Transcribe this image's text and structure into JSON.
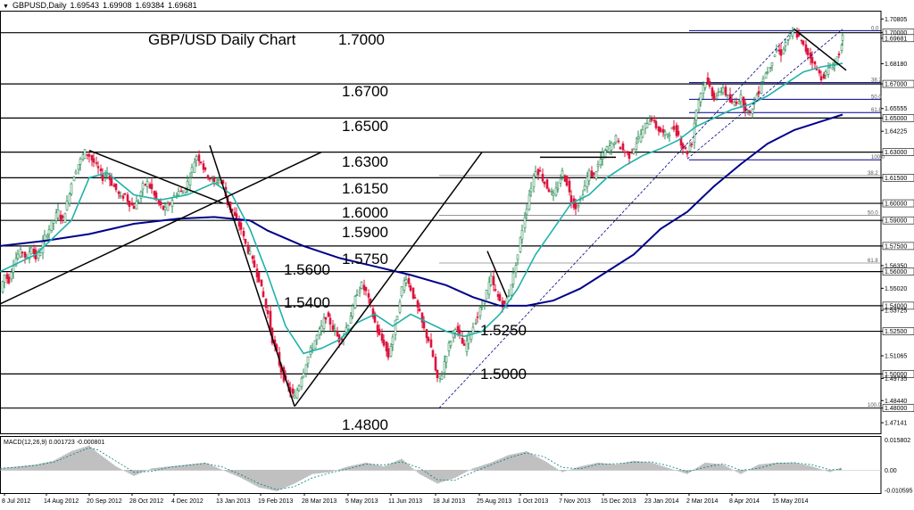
{
  "header": {
    "symbol": "GBPUSD,Daily",
    "values": [
      "1.69543",
      "1.69908",
      "1.69384",
      "1.69681"
    ]
  },
  "chart_title": "GBP/USD Daily Chart",
  "colors": {
    "candle_up": "#2e8b57",
    "candle_down": "#dc143c",
    "ma_fast": "#20b2aa",
    "ma_slow": "#00008b",
    "level_line": "#000000",
    "fib_line": "#00008b",
    "macd_hist": "#808080",
    "signal": "#008080"
  },
  "chart_data": {
    "type": "candlestick",
    "symbol": "GBPUSD,Daily",
    "ylim": [
      1.4652,
      1.7129
    ],
    "y_ticks": [
      "1.70805",
      "1.70000",
      "1.69681",
      "1.68180",
      "1.67000",
      "1.65555",
      "1.65000",
      "1.64225",
      "1.63000",
      "1.61500",
      "1.60000",
      "1.59000",
      "1.57500",
      "1.56350",
      "1.56000",
      "1.55020",
      "1.54000",
      "1.53725",
      "1.52500",
      "1.51065",
      "1.50000",
      "1.49735",
      "1.48440",
      "1.48000",
      "1.47141"
    ],
    "x_tick_labels": [
      "8 Jul 2012",
      "14 Aug 2012",
      "20 Sep 2012",
      "28 Oct 2012",
      "4 Dec 2012",
      "13 Jan 2013",
      "19 Feb 2013",
      "28 Mar 2013",
      "5 May 2013",
      "11 Jun 2013",
      "18 Jul 2013",
      "25 Aug 2013",
      "1 Oct 2013",
      "7 Nov 2013",
      "15 Dec 2013",
      "23 Jan 2014",
      "2 Mar 2014",
      "8 Apr 2014",
      "15 May 2014"
    ],
    "horizontal_levels": [
      {
        "label": "1.7000",
        "value": 1.7
      },
      {
        "label": "1.6700",
        "value": 1.67
      },
      {
        "label": "1.6500",
        "value": 1.65
      },
      {
        "label": "1.6300",
        "value": 1.63
      },
      {
        "label": "1.6150",
        "value": 1.615
      },
      {
        "label": "1.6000",
        "value": 1.6
      },
      {
        "label": "1.5900",
        "value": 1.59
      },
      {
        "label": "1.5750",
        "value": 1.575
      },
      {
        "label": "1.5600",
        "value": 1.56
      },
      {
        "label": "1.5400",
        "value": 1.54
      },
      {
        "label": "1.5250",
        "value": 1.525
      },
      {
        "label": "1.5000",
        "value": 1.5
      },
      {
        "label": "1.4800",
        "value": 1.48
      }
    ],
    "fib_retracement_1": {
      "levels": [
        {
          "label": "0.0",
          "value": 1.7012
        },
        {
          "label": "38.2",
          "value": 1.6708
        },
        {
          "label": "50.0",
          "value": 1.661
        },
        {
          "label": "61.8",
          "value": 1.6532
        },
        {
          "label": "100.0",
          "value": 1.6255
        }
      ]
    },
    "fib_retracement_2": {
      "levels": [
        {
          "label": "38.2",
          "value": 1.6163
        },
        {
          "label": "50.0",
          "value": 1.593
        },
        {
          "label": "61.8",
          "value": 1.565
        },
        {
          "label": "100.0",
          "value": 1.4803
        }
      ]
    },
    "price_path": [
      [
        0,
        1.548
      ],
      [
        5,
        1.558
      ],
      [
        10,
        1.555
      ],
      [
        15,
        1.565
      ],
      [
        20,
        1.57
      ],
      [
        25,
        1.572
      ],
      [
        30,
        1.567
      ],
      [
        35,
        1.575
      ],
      [
        40,
        1.568
      ],
      [
        45,
        1.572
      ],
      [
        50,
        1.58
      ],
      [
        55,
        1.585
      ],
      [
        60,
        1.59
      ],
      [
        65,
        1.595
      ],
      [
        70,
        1.59
      ],
      [
        75,
        1.6
      ],
      [
        80,
        1.612
      ],
      [
        85,
        1.62
      ],
      [
        90,
        1.625
      ],
      [
        95,
        1.63
      ],
      [
        100,
        1.628
      ],
      [
        105,
        1.624
      ],
      [
        110,
        1.62
      ],
      [
        115,
        1.615
      ],
      [
        120,
        1.618
      ],
      [
        125,
        1.612
      ],
      [
        130,
        1.608
      ],
      [
        135,
        1.603
      ],
      [
        140,
        1.605
      ],
      [
        145,
        1.6
      ],
      [
        150,
        1.598
      ],
      [
        155,
        1.602
      ],
      [
        160,
        1.61
      ],
      [
        165,
        1.612
      ],
      [
        170,
        1.608
      ],
      [
        175,
        1.602
      ],
      [
        180,
        1.598
      ],
      [
        185,
        1.596
      ],
      [
        190,
        1.6
      ],
      [
        195,
        1.604
      ],
      [
        200,
        1.607
      ],
      [
        205,
        1.606
      ],
      [
        210,
        1.612
      ],
      [
        215,
        1.62
      ],
      [
        220,
        1.628
      ],
      [
        225,
        1.625
      ],
      [
        230,
        1.618
      ],
      [
        235,
        1.615
      ],
      [
        240,
        1.612
      ],
      [
        245,
        1.614
      ],
      [
        250,
        1.611
      ],
      [
        255,
        1.6
      ],
      [
        260,
        1.595
      ],
      [
        265,
        1.59
      ],
      [
        270,
        1.585
      ],
      [
        275,
        1.576
      ],
      [
        280,
        1.57
      ],
      [
        285,
        1.563
      ],
      [
        290,
        1.556
      ],
      [
        295,
        1.545
      ],
      [
        300,
        1.535
      ],
      [
        305,
        1.52
      ],
      [
        310,
        1.512
      ],
      [
        315,
        1.502
      ],
      [
        320,
        1.495
      ],
      [
        325,
        1.49
      ],
      [
        330,
        1.486
      ],
      [
        335,
        1.494
      ],
      [
        340,
        1.502
      ],
      [
        345,
        1.51
      ],
      [
        350,
        1.516
      ],
      [
        355,
        1.522
      ],
      [
        360,
        1.527
      ],
      [
        365,
        1.534
      ],
      [
        370,
        1.53
      ],
      [
        375,
        1.525
      ],
      [
        380,
        1.52
      ],
      [
        385,
        1.523
      ],
      [
        390,
        1.53
      ],
      [
        395,
        1.538
      ],
      [
        400,
        1.548
      ],
      [
        405,
        1.552
      ],
      [
        410,
        1.548
      ],
      [
        415,
        1.54
      ],
      [
        420,
        1.53
      ],
      [
        425,
        1.522
      ],
      [
        430,
        1.518
      ],
      [
        435,
        1.51
      ],
      [
        440,
        1.522
      ],
      [
        445,
        1.535
      ],
      [
        450,
        1.55
      ],
      [
        455,
        1.557
      ],
      [
        460,
        1.55
      ],
      [
        465,
        1.543
      ],
      [
        470,
        1.535
      ],
      [
        475,
        1.526
      ],
      [
        480,
        1.52
      ],
      [
        485,
        1.51
      ],
      [
        490,
        1.496
      ],
      [
        495,
        1.5
      ],
      [
        500,
        1.512
      ],
      [
        505,
        1.52
      ],
      [
        510,
        1.528
      ],
      [
        515,
        1.522
      ],
      [
        520,
        1.515
      ],
      [
        525,
        1.522
      ],
      [
        530,
        1.528
      ],
      [
        535,
        1.534
      ],
      [
        540,
        1.54
      ],
      [
        545,
        1.548
      ],
      [
        550,
        1.556
      ],
      [
        555,
        1.548
      ],
      [
        560,
        1.543
      ],
      [
        565,
        1.54
      ],
      [
        570,
        1.547
      ],
      [
        575,
        1.558
      ],
      [
        580,
        1.57
      ],
      [
        585,
        1.585
      ],
      [
        590,
        1.598
      ],
      [
        595,
        1.61
      ],
      [
        600,
        1.62
      ],
      [
        605,
        1.618
      ],
      [
        610,
        1.612
      ],
      [
        615,
        1.608
      ],
      [
        620,
        1.604
      ],
      [
        625,
        1.61
      ],
      [
        630,
        1.618
      ],
      [
        635,
        1.612
      ],
      [
        640,
        1.602
      ],
      [
        645,
        1.598
      ],
      [
        650,
        1.602
      ],
      [
        655,
        1.61
      ],
      [
        660,
        1.618
      ],
      [
        665,
        1.616
      ],
      [
        670,
        1.622
      ],
      [
        675,
        1.628
      ],
      [
        680,
        1.632
      ],
      [
        685,
        1.634
      ],
      [
        690,
        1.638
      ],
      [
        695,
        1.633
      ],
      [
        700,
        1.63
      ],
      [
        705,
        1.628
      ],
      [
        710,
        1.633
      ],
      [
        715,
        1.638
      ],
      [
        720,
        1.642
      ],
      [
        725,
        1.648
      ],
      [
        730,
        1.65
      ],
      [
        735,
        1.645
      ],
      [
        740,
        1.642
      ],
      [
        745,
        1.64
      ],
      [
        750,
        1.642
      ],
      [
        755,
        1.644
      ],
      [
        760,
        1.64
      ],
      [
        765,
        1.633
      ],
      [
        770,
        1.63
      ],
      [
        775,
        1.636
      ],
      [
        780,
        1.655
      ],
      [
        785,
        1.665
      ],
      [
        790,
        1.672
      ],
      [
        795,
        1.668
      ],
      [
        800,
        1.662
      ],
      [
        805,
        1.664
      ],
      [
        810,
        1.668
      ],
      [
        815,
        1.662
      ],
      [
        820,
        1.658
      ],
      [
        825,
        1.66
      ],
      [
        830,
        1.662
      ],
      [
        835,
        1.656
      ],
      [
        840,
        1.652
      ],
      [
        845,
        1.66
      ],
      [
        850,
        1.666
      ],
      [
        855,
        1.674
      ],
      [
        860,
        1.678
      ],
      [
        865,
        1.684
      ],
      [
        870,
        1.69
      ],
      [
        875,
        1.688
      ],
      [
        880,
        1.694
      ],
      [
        885,
        1.698
      ],
      [
        890,
        1.701
      ],
      [
        895,
        1.697
      ],
      [
        900,
        1.692
      ],
      [
        905,
        1.688
      ],
      [
        910,
        1.684
      ],
      [
        915,
        1.678
      ],
      [
        920,
        1.674
      ],
      [
        925,
        1.676
      ],
      [
        930,
        1.68
      ],
      [
        935,
        1.682
      ],
      [
        940,
        1.688
      ],
      [
        944,
        1.6968
      ]
    ],
    "ma_fast_path": [
      [
        0,
        1.56
      ],
      [
        40,
        1.57
      ],
      [
        80,
        1.59
      ],
      [
        100,
        1.615
      ],
      [
        120,
        1.618
      ],
      [
        150,
        1.605
      ],
      [
        180,
        1.602
      ],
      [
        210,
        1.605
      ],
      [
        240,
        1.612
      ],
      [
        260,
        1.605
      ],
      [
        280,
        1.585
      ],
      [
        300,
        1.558
      ],
      [
        320,
        1.528
      ],
      [
        340,
        1.512
      ],
      [
        360,
        1.515
      ],
      [
        380,
        1.52
      ],
      [
        400,
        1.53
      ],
      [
        420,
        1.535
      ],
      [
        440,
        1.528
      ],
      [
        460,
        1.535
      ],
      [
        480,
        1.53
      ],
      [
        500,
        1.525
      ],
      [
        520,
        1.522
      ],
      [
        540,
        1.525
      ],
      [
        560,
        1.535
      ],
      [
        580,
        1.55
      ],
      [
        600,
        1.57
      ],
      [
        620,
        1.585
      ],
      [
        640,
        1.6
      ],
      [
        660,
        1.605
      ],
      [
        680,
        1.615
      ],
      [
        700,
        1.622
      ],
      [
        720,
        1.628
      ],
      [
        740,
        1.632
      ],
      [
        760,
        1.637
      ],
      [
        780,
        1.645
      ],
      [
        800,
        1.65
      ],
      [
        820,
        1.655
      ],
      [
        840,
        1.658
      ],
      [
        860,
        1.663
      ],
      [
        880,
        1.67
      ],
      [
        900,
        1.677
      ],
      [
        920,
        1.68
      ],
      [
        944,
        1.682
      ]
    ],
    "ma_slow_path": [
      [
        0,
        1.575
      ],
      [
        50,
        1.578
      ],
      [
        100,
        1.582
      ],
      [
        150,
        1.588
      ],
      [
        200,
        1.591
      ],
      [
        240,
        1.592
      ],
      [
        280,
        1.59
      ],
      [
        300,
        1.584
      ],
      [
        340,
        1.575
      ],
      [
        380,
        1.568
      ],
      [
        420,
        1.563
      ],
      [
        460,
        1.558
      ],
      [
        500,
        1.552
      ],
      [
        530,
        1.545
      ],
      [
        560,
        1.54
      ],
      [
        590,
        1.54
      ],
      [
        620,
        1.543
      ],
      [
        650,
        1.55
      ],
      [
        680,
        1.56
      ],
      [
        710,
        1.57
      ],
      [
        740,
        1.585
      ],
      [
        770,
        1.595
      ],
      [
        800,
        1.61
      ],
      [
        830,
        1.623
      ],
      [
        860,
        1.635
      ],
      [
        890,
        1.643
      ],
      [
        920,
        1.648
      ],
      [
        944,
        1.652
      ]
    ],
    "trendlines": [
      [
        [
          0,
          1.541
        ],
        [
          360,
          1.63
        ]
      ],
      [
        [
          100,
          1.631
        ],
        [
          250,
          1.6
        ]
      ],
      [
        [
          235,
          1.634
        ],
        [
          330,
          1.481
        ]
      ],
      [
        [
          330,
          1.481
        ],
        [
          540,
          1.63
        ]
      ],
      [
        [
          605,
          1.627
        ],
        [
          690,
          1.627
        ]
      ],
      [
        [
          546,
          1.572
        ],
        [
          568,
          1.545
        ]
      ],
      [
        [
          492,
          1.48
        ],
        [
          890,
          1.702
        ]
      ],
      [
        [
          890,
          1.702
        ],
        [
          948,
          1.678
        ]
      ],
      [
        [
          770,
          1.626
        ],
        [
          944,
          1.702
        ]
      ]
    ],
    "macd": {
      "label": "MACD(12,26,9) 0.001723 -0.000801",
      "ylim": [
        -0.012,
        0.018
      ],
      "y_ticks": [
        "0.015802",
        "0.00",
        "-0.010595"
      ],
      "histogram": [
        [
          0,
          0.001
        ],
        [
          20,
          0.002
        ],
        [
          40,
          0.003
        ],
        [
          60,
          0.005
        ],
        [
          80,
          0.01
        ],
        [
          100,
          0.013
        ],
        [
          110,
          0.009
        ],
        [
          130,
          0.002
        ],
        [
          150,
          -0.003
        ],
        [
          170,
          0.001
        ],
        [
          190,
          0.002
        ],
        [
          210,
          0.003
        ],
        [
          230,
          0.004
        ],
        [
          250,
          0.0
        ],
        [
          270,
          -0.004
        ],
        [
          290,
          -0.009
        ],
        [
          310,
          -0.011
        ],
        [
          330,
          -0.007
        ],
        [
          350,
          -0.002
        ],
        [
          370,
          -0.001
        ],
        [
          390,
          0.002
        ],
        [
          410,
          0.004
        ],
        [
          430,
          0.002
        ],
        [
          450,
          0.006
        ],
        [
          470,
          -0.002
        ],
        [
          490,
          -0.007
        ],
        [
          510,
          -0.004
        ],
        [
          530,
          0.001
        ],
        [
          550,
          0.004
        ],
        [
          570,
          0.008
        ],
        [
          590,
          0.01
        ],
        [
          610,
          0.005
        ],
        [
          630,
          -0.001
        ],
        [
          650,
          0.002
        ],
        [
          670,
          0.004
        ],
        [
          690,
          0.003
        ],
        [
          710,
          0.005
        ],
        [
          730,
          0.004
        ],
        [
          750,
          0.001
        ],
        [
          770,
          -0.002
        ],
        [
          790,
          0.004
        ],
        [
          810,
          0.003
        ],
        [
          830,
          -0.002
        ],
        [
          850,
          0.003
        ],
        [
          870,
          0.004
        ],
        [
          890,
          0.004
        ],
        [
          910,
          0.002
        ],
        [
          930,
          -0.001
        ],
        [
          944,
          0.0017
        ]
      ]
    }
  }
}
